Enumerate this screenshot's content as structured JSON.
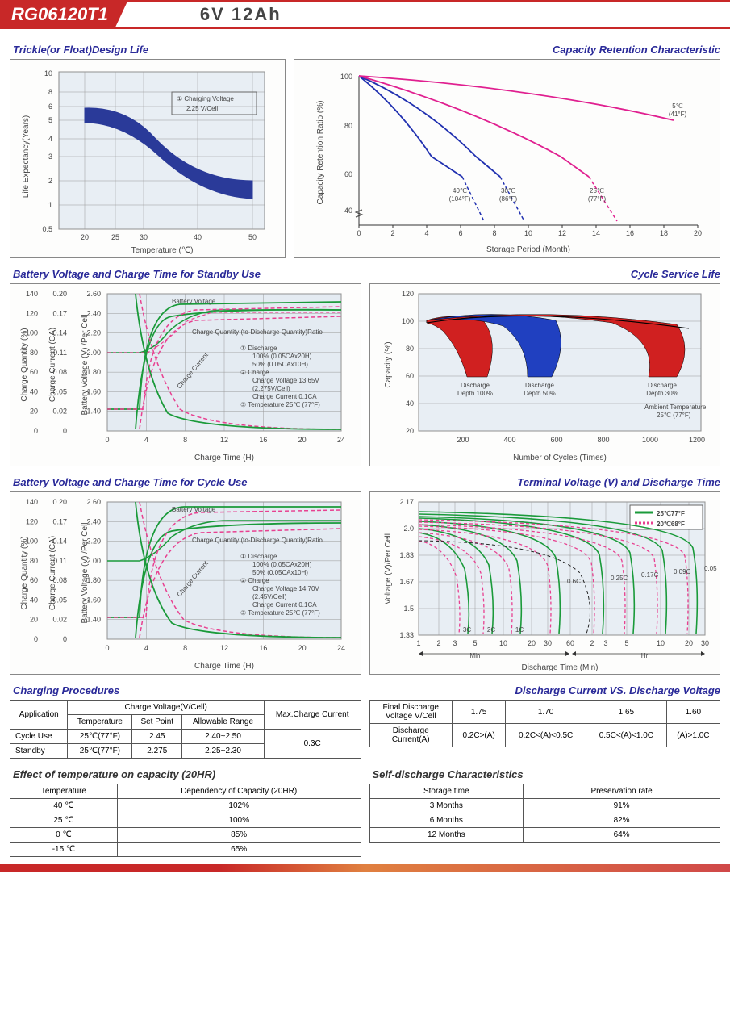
{
  "header": {
    "model": "RG06120T1",
    "spec": "6V  12Ah"
  },
  "chart1": {
    "title": "Trickle(or Float)Design Life",
    "ylabel": "Life Expectancy(Years)",
    "xlabel": "Temperature (℃)",
    "yticks": [
      "0.5",
      "1",
      "2",
      "3",
      "4",
      "5",
      "6",
      "8",
      "10"
    ],
    "xticks": [
      "20",
      "25",
      "30",
      "40",
      "50"
    ],
    "note_num": "①",
    "note_label": "Charging Voltage",
    "note_value": "2.25 V/Cell",
    "band_color": "#2a3a99"
  },
  "chart2": {
    "title": "Capacity  Retention  Characteristic",
    "ylabel": "Capacity Retention Ratio (%)",
    "xlabel": "Storage Period (Month)",
    "yticks": [
      "40",
      "60",
      "80",
      "100"
    ],
    "xticks": [
      "0",
      "2",
      "4",
      "6",
      "8",
      "10",
      "12",
      "14",
      "16",
      "18",
      "20"
    ],
    "series": [
      {
        "label_c": "40℃",
        "label_f": "(104°F)",
        "color": "#2030b0",
        "x_at_60": 7
      },
      {
        "label_c": "30℃",
        "label_f": "(86°F)",
        "color": "#2030b0",
        "x_at_60": 9
      },
      {
        "label_c": "25℃",
        "label_f": "(77°F)",
        "color": "#e02090",
        "x_at_60": 14
      },
      {
        "label_c": "5℃",
        "label_f": "(41°F)",
        "color": "#e02090",
        "x_at_60": 20
      }
    ]
  },
  "chart3": {
    "title": "Battery Voltage and Charge Time for Standby Use",
    "ylabel1": "Charge Quantity (%)",
    "ylabel2": "Charge Current (CA)",
    "ylabel3": "Battery Voltage (V) /Per Cell",
    "xlabel": "Charge Time (H)",
    "xticks": [
      "0",
      "4",
      "8",
      "12",
      "16",
      "20",
      "24"
    ],
    "y1_ticks": [
      "0",
      "20",
      "40",
      "60",
      "80",
      "100",
      "120",
      "140"
    ],
    "y2_ticks": [
      "0",
      "0.02",
      "0.05",
      "0.08",
      "0.11",
      "0.14",
      "0.17",
      "0.20"
    ],
    "y3_ticks": [
      "",
      "1.40",
      "1.60",
      "1.80",
      "2.00",
      "2.20",
      "2.40",
      "2.60"
    ],
    "labels": {
      "bv": "Battery Voltage",
      "cq": "Charge Quantity (to-Discharge Quantity)Ratio",
      "cc": "Charge Current",
      "n1": "① Discharge",
      "n1a": "100% (0.05CAx20H)",
      "n1b": "50% (0.05CAx10H)",
      "n2": "② Charge",
      "n2a": "Charge Voltage 13.65V",
      "n2b": "(2.275V/Cell)",
      "n2c": "Charge Current 0.1CA",
      "n3": "③ Temperature 25℃ (77°F)"
    },
    "green": "#1a9a3a",
    "pink": "#e84090"
  },
  "chart4": {
    "title": "Cycle Service Life",
    "ylabel": "Capacity (%)",
    "xlabel": "Number of Cycles (Times)",
    "yticks": [
      "20",
      "40",
      "60",
      "80",
      "100",
      "120"
    ],
    "xticks": [
      "200",
      "400",
      "600",
      "800",
      "1000",
      "1200"
    ],
    "labels": {
      "d100": "Discharge\nDepth 100%",
      "d50": "Discharge\nDepth 50%",
      "d30": "Discharge\nDepth 30%",
      "amb": "Ambient Temperature:\n25℃ (77°F)"
    },
    "red": "#d02020",
    "blue": "#2040c0"
  },
  "chart5": {
    "title": "Battery Voltage and Charge Time for Cycle Use",
    "labels": {
      "n2a": "Charge Voltage 14.70V",
      "n2b": "(2.45V/Cell)"
    }
  },
  "chart6": {
    "title": "Terminal Voltage (V) and Discharge Time",
    "ylabel": "Voltage (V)/Per Cell",
    "xlabel": "Discharge Time (Min)",
    "yticks": [
      "1.33",
      "1.5",
      "1.67",
      "1.83",
      "2.0",
      "2.17"
    ],
    "xticks_min": [
      "1",
      "2",
      "3",
      "5",
      "10",
      "20",
      "30",
      "60"
    ],
    "xticks_hr": [
      "2",
      "3",
      "5",
      "10",
      "20",
      "30"
    ],
    "min_label": "Min",
    "hr_label": "Hr",
    "legend": {
      "l1": "25℃77°F",
      "l2": "20℃68°F"
    },
    "curves": [
      "3C",
      "2C",
      "1C",
      "0.6C",
      "0.25C",
      "0.17C",
      "0.09C",
      "0.05C"
    ],
    "green": "#1a9a3a",
    "pink": "#e84090",
    "black": "#222"
  },
  "table1": {
    "title": "Charging Procedures",
    "h_app": "Application",
    "h_cv": "Charge Voltage(V/Cell)",
    "h_max": "Max.Charge Current",
    "h_temp": "Temperature",
    "h_set": "Set Point",
    "h_range": "Allowable Range",
    "r1": [
      "Cycle Use",
      "25℃(77°F)",
      "2.45",
      "2.40~2.50"
    ],
    "r2": [
      "Standby",
      "25℃(77°F)",
      "2.275",
      "2.25~2.30"
    ],
    "max": "0.3C"
  },
  "table2": {
    "title": "Discharge Current VS. Discharge Voltage",
    "h1": "Final Discharge\nVoltage V/Cell",
    "h2": "Discharge\nCurrent(A)",
    "c": [
      "1.75",
      "1.70",
      "1.65",
      "1.60"
    ],
    "d": [
      "0.2C>(A)",
      "0.2C<(A)<0.5C",
      "0.5C<(A)<1.0C",
      "(A)>1.0C"
    ]
  },
  "table3": {
    "title": "Effect of temperature on capacity (20HR)",
    "h1": "Temperature",
    "h2": "Dependency of Capacity (20HR)",
    "rows": [
      [
        "40 ℃",
        "102%"
      ],
      [
        "25 ℃",
        "100%"
      ],
      [
        "0 ℃",
        "85%"
      ],
      [
        "-15 ℃",
        "65%"
      ]
    ]
  },
  "table4": {
    "title": "Self-discharge Characteristics",
    "h1": "Storage time",
    "h2": "Preservation rate",
    "rows": [
      [
        "3 Months",
        "91%"
      ],
      [
        "6 Months",
        "82%"
      ],
      [
        "12 Months",
        "64%"
      ]
    ]
  }
}
